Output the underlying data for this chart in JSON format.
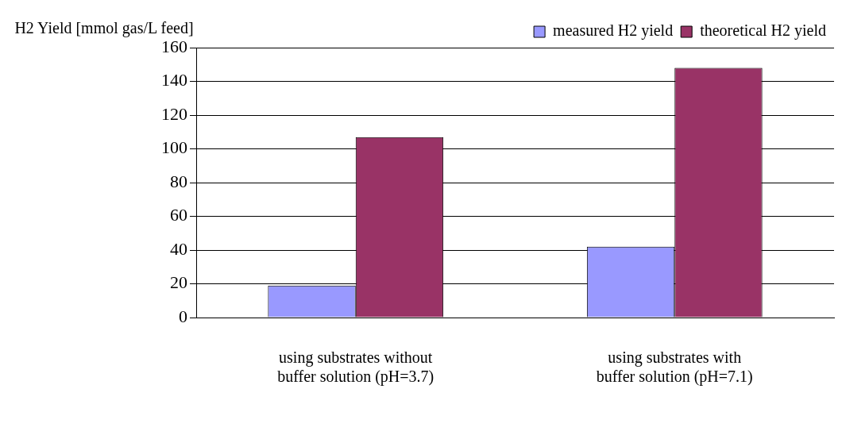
{
  "chart_data": {
    "type": "bar",
    "ylabel": "H2 Yield [mmol gas/L feed]",
    "categories": [
      "using substrates without buffer solution (pH=3.7)",
      "using substrates with buffer solution (pH=7.1)"
    ],
    "series": [
      {
        "name": "measured H2 yield",
        "color": "#9999ff",
        "values": [
          19,
          42
        ]
      },
      {
        "name": "theoretical H2 yield",
        "color": "#993366",
        "values": [
          107,
          148
        ]
      }
    ],
    "ylim": [
      0,
      160
    ],
    "yticks": [
      0,
      20,
      40,
      60,
      80,
      100,
      120,
      140,
      160
    ],
    "grid": "y",
    "legend": "top right"
  }
}
